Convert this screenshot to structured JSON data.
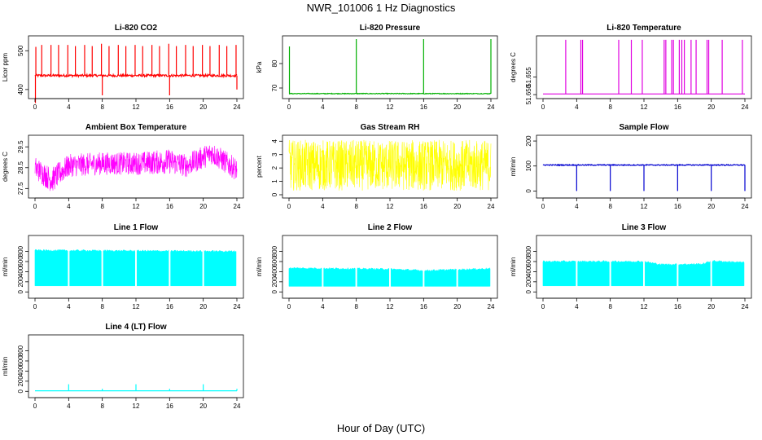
{
  "figure": {
    "title": "NWR_101006  1 Hz Diagnostics",
    "xlabel": "Hour of Day (UTC)"
  },
  "chart_data": [
    {
      "type": "line",
      "title": "Li-820 CO2",
      "ylabel": "Licor ppm",
      "color": "#ff0000",
      "xlim": [
        0,
        24
      ],
      "xticks": [
        0,
        4,
        8,
        12,
        16,
        20,
        24
      ],
      "ylim": [
        385,
        530
      ],
      "yticks": [
        400,
        500
      ],
      "ytick_labels": [
        "400",
        "500"
      ],
      "baseline": 436,
      "noise": 3,
      "spikes": [
        [
          0.1,
          510
        ],
        [
          0.8,
          515
        ],
        [
          1.9,
          515
        ],
        [
          2.8,
          515
        ],
        [
          3.9,
          515
        ],
        [
          4.8,
          512
        ],
        [
          5.9,
          515
        ],
        [
          6.8,
          512
        ],
        [
          7.9,
          518
        ],
        [
          8.8,
          512
        ],
        [
          9.9,
          515
        ],
        [
          10.8,
          512
        ],
        [
          11.9,
          515
        ],
        [
          12.8,
          512
        ],
        [
          13.9,
          515
        ],
        [
          14.8,
          512
        ],
        [
          15.9,
          518
        ],
        [
          16.8,
          512
        ],
        [
          17.9,
          515
        ],
        [
          18.8,
          512
        ],
        [
          19.9,
          515
        ],
        [
          20.8,
          512
        ],
        [
          21.9,
          515
        ],
        [
          22.8,
          512
        ],
        [
          23.9,
          515
        ]
      ],
      "dips": [
        [
          0.05,
          365
        ],
        [
          8.0,
          385
        ],
        [
          16.0,
          385
        ],
        [
          24.0,
          400
        ]
      ]
    },
    {
      "type": "line",
      "title": "Li-820 Pressure",
      "ylabel": "kPa",
      "color": "#00b000",
      "xlim": [
        0,
        24
      ],
      "xticks": [
        0,
        4,
        8,
        12,
        16,
        20,
        24
      ],
      "ylim": [
        67,
        90
      ],
      "yticks": [
        70,
        80
      ],
      "ytick_labels": [
        "70",
        "80"
      ],
      "baseline": 67.7,
      "noise": 0.15,
      "spikes": [
        [
          0.05,
          87
        ],
        [
          8.0,
          90
        ],
        [
          16.0,
          90
        ],
        [
          24.0,
          90
        ]
      ],
      "dips": []
    },
    {
      "type": "line",
      "title": "Li-820 Temperature",
      "ylabel": "degrees C",
      "color": "#e000e0",
      "xlim": [
        0,
        24
      ],
      "xticks": [
        0,
        4,
        8,
        12,
        16,
        20,
        24
      ],
      "ylim": [
        51.6498,
        51.6658
      ],
      "yticks": [
        51.65,
        51.655
      ],
      "ytick_labels": [
        "51.650",
        "51.655"
      ],
      "baseline": 51.6502,
      "noise": 0,
      "spikes": [
        [
          2.7,
          51.6656
        ],
        [
          4.5,
          51.6656
        ],
        [
          4.7,
          51.6656
        ],
        [
          9.0,
          51.6656
        ],
        [
          10.5,
          51.6656
        ],
        [
          11.8,
          51.6656
        ],
        [
          14.4,
          51.6656
        ],
        [
          14.6,
          51.6656
        ],
        [
          15.3,
          51.6656
        ],
        [
          15.5,
          51.6656
        ],
        [
          16.2,
          51.6656
        ],
        [
          16.5,
          51.6656
        ],
        [
          16.8,
          51.6656
        ],
        [
          17.6,
          51.6656
        ],
        [
          18.2,
          51.6656
        ],
        [
          19.5,
          51.6656
        ],
        [
          19.7,
          51.6656
        ],
        [
          21.3,
          51.6656
        ],
        [
          23.7,
          51.6656
        ]
      ],
      "dips": []
    },
    {
      "type": "line",
      "title": "Ambient Box Temperature",
      "ylabel": "degrees C",
      "color": "#ff00ff",
      "xlim": [
        0,
        24
      ],
      "xticks": [
        0,
        4,
        8,
        12,
        16,
        20,
        24
      ],
      "ylim": [
        27.2,
        29.9
      ],
      "yticks": [
        27.5,
        28.5,
        29.5
      ],
      "ytick_labels": [
        "27.5",
        "28.5",
        "29.5"
      ],
      "band": [
        [
          0,
          28.5,
          0.55
        ],
        [
          2,
          27.9,
          0.6
        ],
        [
          4,
          28.6,
          0.55
        ],
        [
          8,
          28.7,
          0.55
        ],
        [
          12,
          28.7,
          0.55
        ],
        [
          16,
          28.8,
          0.6
        ],
        [
          18,
          28.6,
          0.55
        ],
        [
          21,
          29.2,
          0.55
        ],
        [
          24,
          28.4,
          0.55
        ]
      ]
    },
    {
      "type": "line",
      "title": "Gas Stream RH",
      "ylabel": "percent",
      "color": "#ffff00",
      "xlim": [
        0,
        24
      ],
      "xticks": [
        0,
        4,
        8,
        12,
        16,
        20,
        24
      ],
      "ylim": [
        0,
        4.2
      ],
      "yticks": [
        0,
        1,
        2,
        3,
        4
      ],
      "ytick_labels": [
        "0",
        "1",
        "2",
        "3",
        "4"
      ],
      "band": [
        [
          0,
          2.2,
          1.9
        ],
        [
          24,
          2.2,
          1.9
        ]
      ]
    },
    {
      "type": "line",
      "title": "Sample Flow",
      "ylabel": "ml/min",
      "color": "#0000d0",
      "xlim": [
        0,
        24
      ],
      "xticks": [
        0,
        4,
        8,
        12,
        16,
        20,
        24
      ],
      "ylim": [
        -15,
        210
      ],
      "yticks": [
        0,
        100,
        200
      ],
      "ytick_labels": [
        "0",
        "100",
        "200"
      ],
      "baseline": 104,
      "noise": 2,
      "spikes": [],
      "dips": [
        [
          4.0,
          0
        ],
        [
          8.0,
          0
        ],
        [
          12.0,
          0
        ],
        [
          16.0,
          0
        ],
        [
          20.0,
          0
        ],
        [
          24.0,
          0
        ]
      ]
    },
    {
      "type": "line",
      "title": "Line 1 Flow",
      "ylabel": "ml/min",
      "color": "#00ffff",
      "xlim": [
        0,
        24
      ],
      "xticks": [
        0,
        4,
        8,
        12,
        16,
        20,
        24
      ],
      "ylim": [
        -60,
        1050
      ],
      "yticks": [
        0,
        200,
        400,
        600,
        800
      ],
      "ytick_labels": [
        "0",
        "200",
        "400",
        "600",
        "800"
      ],
      "dense": [
        [
          0,
          820
        ],
        [
          24,
          800
        ]
      ],
      "low": 120,
      "gaps": [
        4,
        8,
        12,
        16,
        20
      ]
    },
    {
      "type": "line",
      "title": "Line 2 Flow",
      "ylabel": "ml/min",
      "color": "#00ffff",
      "xlim": [
        0,
        24
      ],
      "xticks": [
        0,
        4,
        8,
        12,
        16,
        20,
        24
      ],
      "ylim": [
        -60,
        1050
      ],
      "yticks": [
        0,
        200,
        400,
        600,
        800
      ],
      "ytick_labels": [
        "0",
        "200",
        "400",
        "600",
        "800"
      ],
      "dense": [
        [
          0,
          470
        ],
        [
          12,
          450
        ],
        [
          16,
          420
        ],
        [
          24,
          460
        ]
      ],
      "low": 110,
      "gaps": [
        4,
        8,
        12,
        16,
        20
      ]
    },
    {
      "type": "line",
      "title": "Line 3 Flow",
      "ylabel": "ml/min",
      "color": "#00ffff",
      "xlim": [
        0,
        24
      ],
      "xticks": [
        0,
        4,
        8,
        12,
        16,
        20,
        24
      ],
      "ylim": [
        -60,
        1050
      ],
      "yticks": [
        0,
        200,
        400,
        600,
        800
      ],
      "ytick_labels": [
        "0",
        "200",
        "400",
        "600",
        "800"
      ],
      "dense": [
        [
          0,
          600
        ],
        [
          12,
          600
        ],
        [
          14,
          540
        ],
        [
          19,
          550
        ],
        [
          20,
          610
        ],
        [
          24,
          580
        ]
      ],
      "low": 120,
      "gaps": [
        4,
        8,
        12,
        16,
        20
      ]
    },
    {
      "type": "line",
      "title": "Line 4 (LT) Flow",
      "ylabel": "ml/min",
      "color": "#00ffff",
      "xlim": [
        0,
        24
      ],
      "xticks": [
        0,
        4,
        8,
        12,
        16,
        20,
        24
      ],
      "ylim": [
        -60,
        1050
      ],
      "yticks": [
        0,
        200,
        400,
        600,
        800
      ],
      "ytick_labels": [
        "0",
        "200",
        "400",
        "600",
        "800"
      ],
      "baseline": 10,
      "noise": 0,
      "spikes": [
        [
          4.0,
          140
        ],
        [
          8.0,
          50
        ],
        [
          12.0,
          140
        ],
        [
          16.0,
          50
        ],
        [
          20.0,
          140
        ],
        [
          24.0,
          50
        ]
      ],
      "dips": []
    }
  ]
}
